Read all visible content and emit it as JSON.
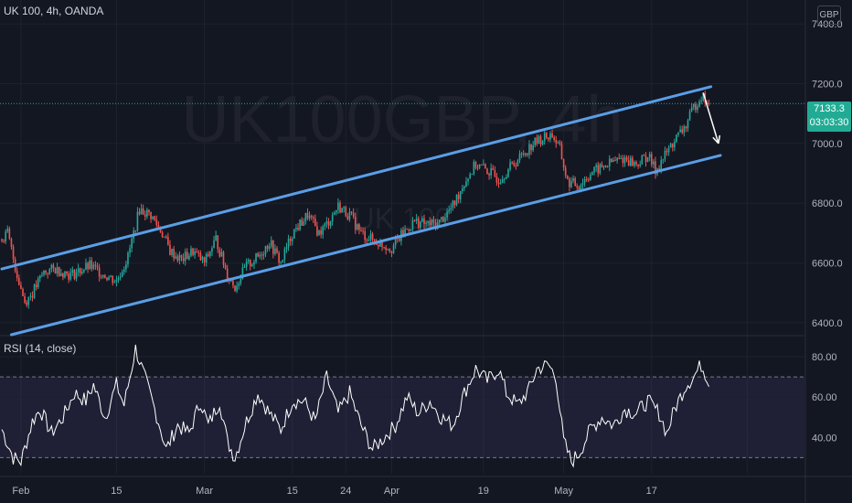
{
  "header": {
    "symbol_title": "UK 100, 4h, OANDA",
    "currency": "GBP",
    "watermark_main": "UK100GBP, 4h",
    "watermark_sub": "UK 100"
  },
  "last_price": {
    "value": "7133.3",
    "countdown": "03:03:30",
    "tag_color": "#22ab94"
  },
  "rsi": {
    "label": "RSI (14, close)",
    "upper_band": 70,
    "lower_band": 30,
    "band_fill": "#7e57c2"
  },
  "colors": {
    "background": "#131722",
    "up": "#26a69a",
    "down": "#ef5350",
    "channel": "#5b9ee6",
    "rsi_line": "#ffffff"
  },
  "chart_data": [
    {
      "type": "candlestick",
      "title": "UK 100, 4h, OANDA",
      "ylim": [
        6360,
        7480
      ],
      "y_ticks": [
        "7400.0",
        "7200.0",
        "7000.0",
        "6800.0",
        "6600.0",
        "6400.0"
      ],
      "x_ticks": [
        "Feb",
        "15",
        "Mar",
        "15",
        "24",
        "Apr",
        "19",
        "May",
        "17"
      ],
      "anchors": [
        {
          "i": 0,
          "v": 6680
        },
        {
          "i": 3,
          "v": 6700
        },
        {
          "i": 8,
          "v": 6560
        },
        {
          "i": 12,
          "v": 6470
        },
        {
          "i": 16,
          "v": 6500
        },
        {
          "i": 22,
          "v": 6570
        },
        {
          "i": 28,
          "v": 6580
        },
        {
          "i": 36,
          "v": 6560
        },
        {
          "i": 46,
          "v": 6590
        },
        {
          "i": 54,
          "v": 6560
        },
        {
          "i": 60,
          "v": 6540
        },
        {
          "i": 66,
          "v": 6620
        },
        {
          "i": 72,
          "v": 6780
        },
        {
          "i": 78,
          "v": 6760
        },
        {
          "i": 84,
          "v": 6700
        },
        {
          "i": 88,
          "v": 6640
        },
        {
          "i": 94,
          "v": 6610
        },
        {
          "i": 100,
          "v": 6640
        },
        {
          "i": 106,
          "v": 6600
        },
        {
          "i": 112,
          "v": 6680
        },
        {
          "i": 118,
          "v": 6560
        },
        {
          "i": 122,
          "v": 6520
        },
        {
          "i": 128,
          "v": 6590
        },
        {
          "i": 134,
          "v": 6620
        },
        {
          "i": 140,
          "v": 6670
        },
        {
          "i": 146,
          "v": 6600
        },
        {
          "i": 152,
          "v": 6700
        },
        {
          "i": 160,
          "v": 6760
        },
        {
          "i": 166,
          "v": 6700
        },
        {
          "i": 170,
          "v": 6730
        },
        {
          "i": 176,
          "v": 6790
        },
        {
          "i": 182,
          "v": 6760
        },
        {
          "i": 188,
          "v": 6700
        },
        {
          "i": 196,
          "v": 6670
        },
        {
          "i": 204,
          "v": 6650
        },
        {
          "i": 210,
          "v": 6700
        },
        {
          "i": 216,
          "v": 6740
        },
        {
          "i": 222,
          "v": 6730
        },
        {
          "i": 228,
          "v": 6730
        },
        {
          "i": 236,
          "v": 6790
        },
        {
          "i": 242,
          "v": 6870
        },
        {
          "i": 248,
          "v": 6930
        },
        {
          "i": 254,
          "v": 6910
        },
        {
          "i": 260,
          "v": 6880
        },
        {
          "i": 266,
          "v": 6920
        },
        {
          "i": 272,
          "v": 6960
        },
        {
          "i": 278,
          "v": 7000
        },
        {
          "i": 284,
          "v": 7020
        },
        {
          "i": 288,
          "v": 7030
        },
        {
          "i": 292,
          "v": 6980
        },
        {
          "i": 296,
          "v": 6870
        },
        {
          "i": 302,
          "v": 6860
        },
        {
          "i": 308,
          "v": 6900
        },
        {
          "i": 314,
          "v": 6920
        },
        {
          "i": 320,
          "v": 6940
        },
        {
          "i": 326,
          "v": 6950
        },
        {
          "i": 332,
          "v": 6930
        },
        {
          "i": 338,
          "v": 6960
        },
        {
          "i": 342,
          "v": 6910
        },
        {
          "i": 346,
          "v": 6950
        },
        {
          "i": 352,
          "v": 7010
        },
        {
          "i": 358,
          "v": 7060
        },
        {
          "i": 362,
          "v": 7120
        },
        {
          "i": 366,
          "v": 7160
        },
        {
          "i": 370,
          "v": 7133.3
        }
      ],
      "channel_lines": [
        {
          "name": "upper",
          "points": [
            [
              0,
              6580
            ],
            [
              371,
              7190
            ]
          ]
        },
        {
          "name": "lower",
          "points": [
            [
              5,
              6360
            ],
            [
              376,
              6960
            ]
          ]
        }
      ],
      "projection_arrow": {
        "from": [
          367,
          7170
        ],
        "to": [
          375,
          7000
        ]
      }
    },
    {
      "type": "line",
      "title": "RSI (14, close)",
      "ylim": [
        22,
        90
      ],
      "y_ticks": [
        "80.00",
        "60.00",
        "40.00"
      ],
      "anchors": [
        {
          "i": 0,
          "v": 44
        },
        {
          "i": 6,
          "v": 30
        },
        {
          "i": 10,
          "v": 28
        },
        {
          "i": 16,
          "v": 48
        },
        {
          "i": 20,
          "v": 54
        },
        {
          "i": 26,
          "v": 42
        },
        {
          "i": 32,
          "v": 50
        },
        {
          "i": 38,
          "v": 62
        },
        {
          "i": 44,
          "v": 58
        },
        {
          "i": 48,
          "v": 66
        },
        {
          "i": 54,
          "v": 50
        },
        {
          "i": 60,
          "v": 66
        },
        {
          "i": 64,
          "v": 56
        },
        {
          "i": 70,
          "v": 84
        },
        {
          "i": 74,
          "v": 72
        },
        {
          "i": 78,
          "v": 60
        },
        {
          "i": 82,
          "v": 48
        },
        {
          "i": 86,
          "v": 34
        },
        {
          "i": 92,
          "v": 46
        },
        {
          "i": 98,
          "v": 42
        },
        {
          "i": 104,
          "v": 58
        },
        {
          "i": 108,
          "v": 46
        },
        {
          "i": 114,
          "v": 58
        },
        {
          "i": 118,
          "v": 38
        },
        {
          "i": 122,
          "v": 30
        },
        {
          "i": 128,
          "v": 48
        },
        {
          "i": 134,
          "v": 62
        },
        {
          "i": 140,
          "v": 52
        },
        {
          "i": 146,
          "v": 44
        },
        {
          "i": 152,
          "v": 58
        },
        {
          "i": 158,
          "v": 58
        },
        {
          "i": 164,
          "v": 48
        },
        {
          "i": 170,
          "v": 70
        },
        {
          "i": 176,
          "v": 52
        },
        {
          "i": 182,
          "v": 62
        },
        {
          "i": 188,
          "v": 46
        },
        {
          "i": 194,
          "v": 34
        },
        {
          "i": 200,
          "v": 40
        },
        {
          "i": 206,
          "v": 46
        },
        {
          "i": 212,
          "v": 60
        },
        {
          "i": 218,
          "v": 52
        },
        {
          "i": 224,
          "v": 58
        },
        {
          "i": 230,
          "v": 50
        },
        {
          "i": 236,
          "v": 46
        },
        {
          "i": 242,
          "v": 62
        },
        {
          "i": 248,
          "v": 74
        },
        {
          "i": 254,
          "v": 68
        },
        {
          "i": 260,
          "v": 74
        },
        {
          "i": 264,
          "v": 62
        },
        {
          "i": 270,
          "v": 56
        },
        {
          "i": 276,
          "v": 64
        },
        {
          "i": 280,
          "v": 74
        },
        {
          "i": 286,
          "v": 76
        },
        {
          "i": 290,
          "v": 70
        },
        {
          "i": 294,
          "v": 38
        },
        {
          "i": 298,
          "v": 28
        },
        {
          "i": 302,
          "v": 32
        },
        {
          "i": 308,
          "v": 44
        },
        {
          "i": 314,
          "v": 50
        },
        {
          "i": 320,
          "v": 46
        },
        {
          "i": 326,
          "v": 54
        },
        {
          "i": 332,
          "v": 52
        },
        {
          "i": 338,
          "v": 58
        },
        {
          "i": 344,
          "v": 52
        },
        {
          "i": 348,
          "v": 42
        },
        {
          "i": 352,
          "v": 54
        },
        {
          "i": 358,
          "v": 66
        },
        {
          "i": 362,
          "v": 70
        },
        {
          "i": 366,
          "v": 76
        },
        {
          "i": 370,
          "v": 68
        }
      ]
    }
  ]
}
